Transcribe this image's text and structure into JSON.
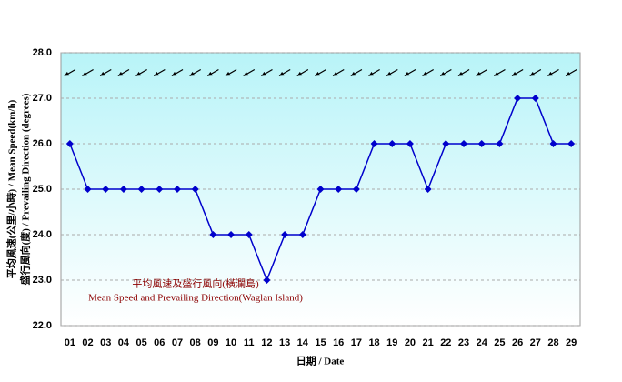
{
  "chart_data": {
    "type": "line",
    "y_label": [
      "平均風速(公里/小時) / Mean Speed(km/h)",
      "盛行風向(度) / Prevailing Direction (degrees)"
    ],
    "x_label": "日期 / Date",
    "annotations": [
      "平均風速及盛行風向(橫瀾島)",
      "Mean Speed and Prevailing Direction(Waglan Island)"
    ],
    "categories": [
      "01",
      "02",
      "03",
      "04",
      "05",
      "06",
      "07",
      "08",
      "09",
      "10",
      "11",
      "12",
      "13",
      "14",
      "15",
      "16",
      "17",
      "18",
      "19",
      "20",
      "21",
      "22",
      "23",
      "24",
      "25",
      "26",
      "27",
      "28",
      "29"
    ],
    "series": [
      {
        "name": "Mean Speed",
        "color": "#0000cc",
        "values": [
          26,
          25,
          25,
          25,
          25,
          25,
          25,
          25,
          24,
          24,
          24,
          23,
          24,
          24,
          25,
          25,
          25,
          26,
          26,
          26,
          25,
          26,
          26,
          26,
          26,
          27,
          27,
          26,
          26
        ]
      },
      {
        "name": "Prevailing Direction",
        "color": "#000000",
        "values": [
          60,
          60,
          60,
          60,
          60,
          60,
          60,
          60,
          60,
          60,
          60,
          60,
          60,
          60,
          60,
          60,
          60,
          60,
          60,
          60,
          60,
          60,
          60,
          60,
          60,
          60,
          60,
          60,
          60
        ]
      }
    ],
    "ylim": [
      22,
      28
    ],
    "yticks": [
      {
        "value": 22,
        "label": "22.0"
      },
      {
        "value": 23,
        "label": "23.0"
      },
      {
        "value": 24,
        "label": "24.0"
      },
      {
        "value": 25,
        "label": "25.0"
      },
      {
        "value": 26,
        "label": "26.0"
      },
      {
        "value": 27,
        "label": "27.0"
      },
      {
        "value": 28,
        "label": "28.0"
      }
    ],
    "grid": true
  }
}
